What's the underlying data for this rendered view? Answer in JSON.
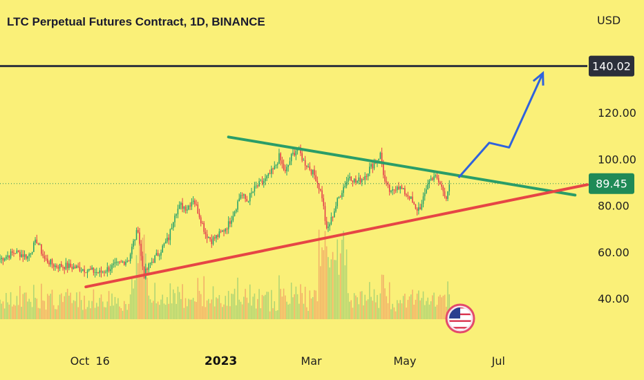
{
  "header": {
    "title": "LTC Perpetual Futures Contract, 1D, BINANCE",
    "currency": "USD"
  },
  "colors": {
    "background": "#FAF078",
    "up": "#22a06b",
    "down": "#e2384b",
    "resistance_line": "#2a9d68",
    "support_line": "#e64545",
    "projection_arrow": "#2f62dd",
    "target_line": "#2b2f3a",
    "current_price_line": "#1f8a57"
  },
  "chart_data": {
    "type": "candlestick",
    "title": "LTC Perpetual Futures Contract, 1D, BINANCE",
    "currency": "USD",
    "ylim": [
      30,
      155
    ],
    "y_ticks": [
      "40.00",
      "60.00",
      "80.00",
      "100.00",
      "120.00"
    ],
    "x_ticks": [
      {
        "label": "Oct",
        "date": "2022-10-01"
      },
      {
        "label": "16",
        "date": "2022-10-16"
      },
      {
        "label": "2023",
        "date": "2023-01-01",
        "bold": true
      },
      {
        "label": "Mar",
        "date": "2023-03-01"
      },
      {
        "label": "May",
        "date": "2023-05-01"
      },
      {
        "label": "Jul",
        "date": "2023-07-01"
      }
    ],
    "x_range": [
      "2022-08-10",
      "2023-08-28"
    ],
    "price_path": [
      [
        "2022-08-10",
        57
      ],
      [
        "2022-08-20",
        60
      ],
      [
        "2022-08-28",
        58
      ],
      [
        "2022-09-03",
        65
      ],
      [
        "2022-09-08",
        57
      ],
      [
        "2022-09-15",
        54
      ],
      [
        "2022-09-22",
        54
      ],
      [
        "2022-10-01",
        53
      ],
      [
        "2022-10-08",
        52
      ],
      [
        "2022-10-14",
        51
      ],
      [
        "2022-10-20",
        53
      ],
      [
        "2022-10-27",
        55
      ],
      [
        "2022-11-02",
        57
      ],
      [
        "2022-11-05",
        64
      ],
      [
        "2022-11-08",
        70
      ],
      [
        "2022-11-10",
        58
      ],
      [
        "2022-11-12",
        50
      ],
      [
        "2022-11-16",
        55
      ],
      [
        "2022-11-22",
        60
      ],
      [
        "2022-11-28",
        66
      ],
      [
        "2022-12-02",
        77
      ],
      [
        "2022-12-06",
        80
      ],
      [
        "2022-12-10",
        79
      ],
      [
        "2022-12-14",
        83
      ],
      [
        "2022-12-18",
        76
      ],
      [
        "2022-12-22",
        68
      ],
      [
        "2022-12-26",
        65
      ],
      [
        "2023-01-01",
        68
      ],
      [
        "2023-01-06",
        72
      ],
      [
        "2023-01-10",
        78
      ],
      [
        "2023-01-14",
        85
      ],
      [
        "2023-01-18",
        82
      ],
      [
        "2023-01-24",
        88
      ],
      [
        "2023-01-30",
        91
      ],
      [
        "2023-02-05",
        96
      ],
      [
        "2023-02-08",
        101
      ],
      [
        "2023-02-12",
        94
      ],
      [
        "2023-02-16",
        101
      ],
      [
        "2023-02-20",
        105
      ],
      [
        "2023-02-24",
        99
      ],
      [
        "2023-02-28",
        96
      ],
      [
        "2023-03-04",
        92
      ],
      [
        "2023-03-08",
        84
      ],
      [
        "2023-03-11",
        69
      ],
      [
        "2023-03-14",
        74
      ],
      [
        "2023-03-18",
        82
      ],
      [
        "2023-03-22",
        88
      ],
      [
        "2023-03-26",
        93
      ],
      [
        "2023-03-30",
        90
      ],
      [
        "2023-04-04",
        92
      ],
      [
        "2023-04-08",
        96
      ],
      [
        "2023-04-12",
        99
      ],
      [
        "2023-04-15",
        102
      ],
      [
        "2023-04-18",
        90
      ],
      [
        "2023-04-22",
        85
      ],
      [
        "2023-04-26",
        89
      ],
      [
        "2023-04-30",
        86
      ],
      [
        "2023-05-04",
        84
      ],
      [
        "2023-05-08",
        78
      ],
      [
        "2023-05-12",
        80
      ],
      [
        "2023-05-16",
        90
      ],
      [
        "2023-05-20",
        93
      ],
      [
        "2023-05-24",
        89
      ],
      [
        "2023-05-28",
        84
      ],
      [
        "2023-05-30",
        89
      ]
    ],
    "current_price": {
      "value": 89.45,
      "label": "89.45"
    },
    "target_price": {
      "value": 140.02,
      "label": "140.02"
    },
    "trendlines": [
      {
        "name": "resistance",
        "color": "#2a9d68",
        "points": [
          [
            "2023-01-06",
            109.5
          ],
          [
            "2023-08-20",
            84.5
          ]
        ]
      },
      {
        "name": "support",
        "color": "#e64545",
        "points": [
          [
            "2022-10-05",
            45
          ],
          [
            "2023-08-28",
            89
          ]
        ]
      }
    ],
    "projection": {
      "color": "#2f62dd",
      "points": [
        [
          "2023-06-05",
          92
        ],
        [
          "2023-06-25",
          107
        ],
        [
          "2023-07-08",
          105
        ],
        [
          "2023-07-30",
          137
        ]
      ]
    },
    "flag_icon": "us-flag-icon"
  }
}
